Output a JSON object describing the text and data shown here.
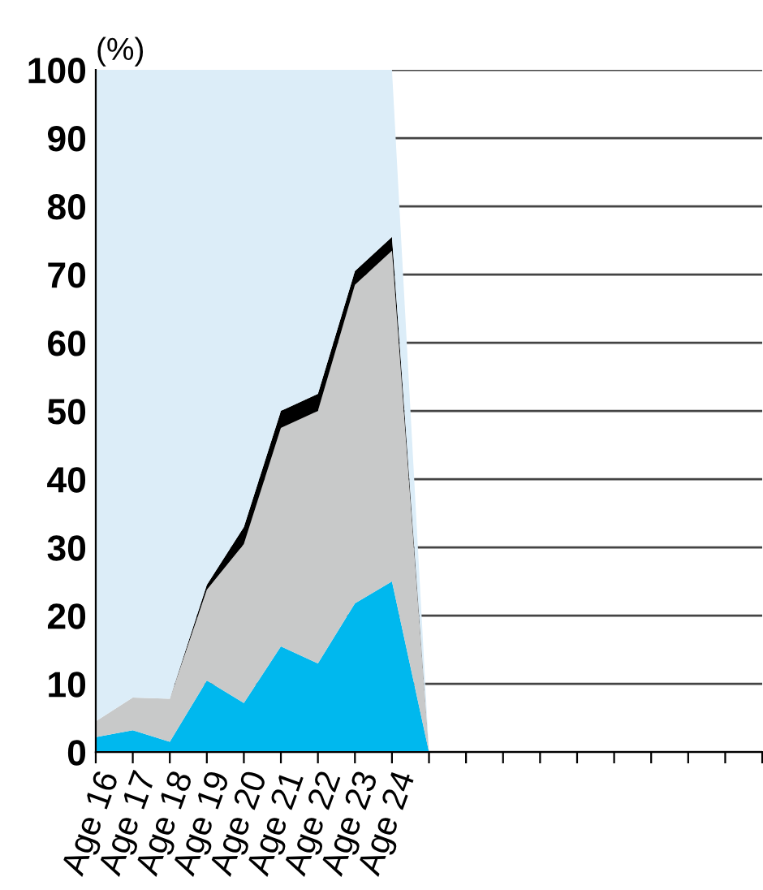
{
  "chart_data": {
    "type": "area",
    "stacked": true,
    "ylabel": "(%)",
    "categories": [
      "Age 16",
      "Age 17",
      "Age 18",
      "Age 19",
      "Age 20",
      "Age 21",
      "Age 22",
      "Age 23",
      "Age 24",
      null,
      null,
      null,
      null,
      null,
      null,
      null,
      null,
      null,
      null
    ],
    "series": [
      {
        "color": "#00b8ee",
        "values": [
          2.2,
          3.2,
          1.5,
          10.5,
          7.2,
          15.5,
          13,
          21.8,
          25,
          0,
          null,
          null,
          null,
          null,
          null,
          null,
          null,
          null,
          null
        ]
      },
      {
        "color": "#c8c9c9",
        "values": [
          2.3,
          4.8,
          6.3,
          13.3,
          23.3,
          32,
          37,
          46.7,
          48.5,
          0,
          null,
          null,
          null,
          null,
          null,
          null,
          null,
          null,
          null
        ]
      },
      {
        "color": "#000000",
        "values": [
          0,
          0,
          0,
          0.7,
          2.5,
          2.5,
          2.5,
          2,
          2,
          0,
          null,
          null,
          null,
          null,
          null,
          null,
          null,
          null,
          null
        ]
      },
      {
        "color": "#dcedf8",
        "values": [
          95.5,
          92,
          92.2,
          75.5,
          67,
          50,
          47.5,
          29.5,
          24.5,
          0,
          null,
          null,
          null,
          null,
          null,
          null,
          null,
          null,
          null
        ]
      }
    ],
    "ylim": [
      0,
      100
    ],
    "yticks": [
      0,
      10,
      20,
      30,
      40,
      50,
      60,
      70,
      80,
      90,
      100
    ],
    "grid": "y"
  }
}
